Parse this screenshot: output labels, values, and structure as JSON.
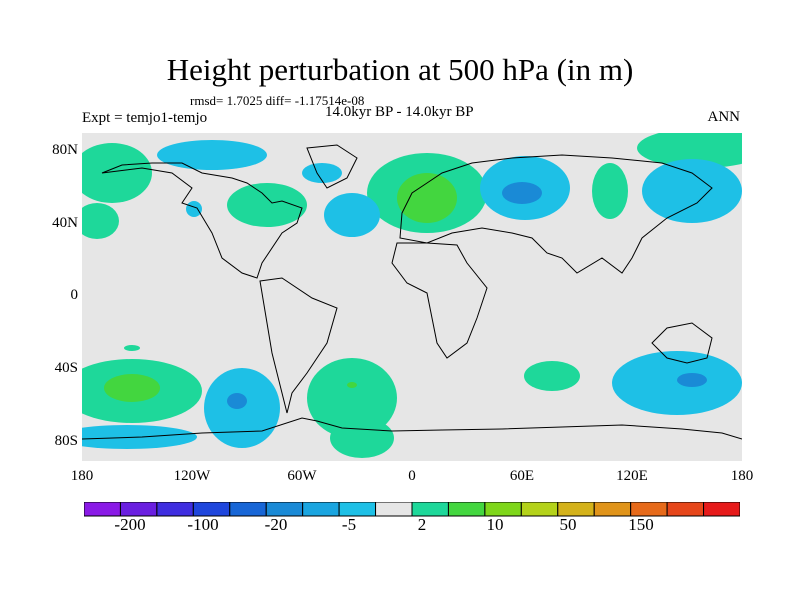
{
  "title": "Height perturbation at 500 hPa (in m)",
  "stats": "rmsd= 1.7025 diff= -1.17514e-08",
  "expt": "Expt = temjo1-temjo",
  "period": "14.0kyr BP - 14.0kyr BP",
  "season": "ANN",
  "lat_ticks": [
    "80N",
    "40N",
    "0",
    "40S",
    "80S"
  ],
  "lon_ticks": [
    "180",
    "120W",
    "60W",
    "0",
    "60E",
    "120E",
    "180"
  ],
  "colorbar": {
    "colors": [
      "#8a1ae6",
      "#6a1fe0",
      "#3f2ee0",
      "#1f46dc",
      "#1866d6",
      "#1a8ad6",
      "#1aa5e0",
      "#1ec0e6",
      "#e6e6e6",
      "#1ed89a",
      "#43d63f",
      "#7ed61a",
      "#b4d21a",
      "#d4b21a",
      "#e0941a",
      "#e66a1a",
      "#e6461a",
      "#e61a1a"
    ],
    "labels": [
      "-200",
      "-100",
      "-20",
      "-5",
      "2",
      "10",
      "50",
      "150"
    ]
  },
  "map_colors": {
    "background": "#e6e6e6",
    "coast": "#000000"
  }
}
